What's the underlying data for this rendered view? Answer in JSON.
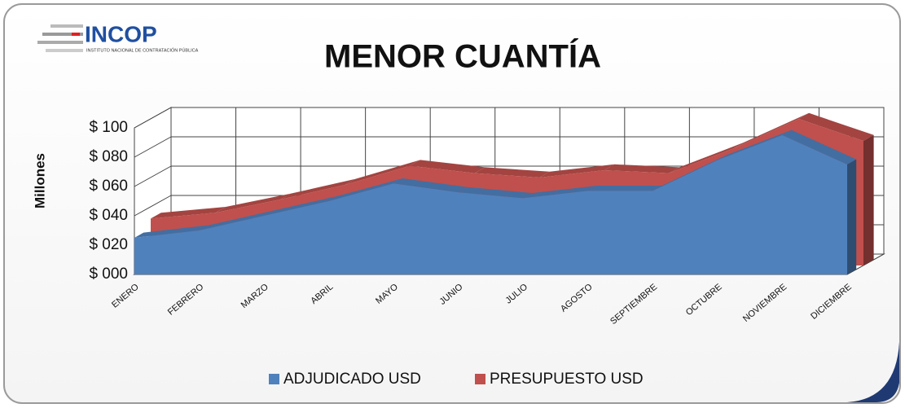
{
  "logo": {
    "name": "INCOP",
    "subtitle": "INSTITUTO NACIONAL DE CONTRATACIÓN PÚBLICA"
  },
  "chart_data": {
    "type": "area3d",
    "title": "MENOR CUANTÍA",
    "y_label": "Millones",
    "categories": [
      "ENERO",
      "FEBRERO",
      "MARZO",
      "ABRIL",
      "MAYO",
      "JUNIO",
      "JULIO",
      "AGOSTO",
      "SEPTIEMBRE",
      "OCTUBRE",
      "NOVIEMBRE",
      "DICIEMBRE"
    ],
    "series": [
      {
        "name": "ADJUDICADO USD",
        "color": "#4f81bd",
        "values": [
          25,
          30,
          40,
          50,
          62,
          56,
          52,
          57,
          57,
          78,
          95,
          75
        ]
      },
      {
        "name": "PRESUPUESTO USD",
        "color": "#c0504d",
        "values": [
          32,
          36,
          45,
          55,
          68,
          63,
          60,
          65,
          63,
          80,
          100,
          85
        ]
      }
    ],
    "ylim": [
      0,
      100
    ],
    "yticks": [
      {
        "value": 0,
        "label": "$ 000"
      },
      {
        "value": 20,
        "label": "$ 020"
      },
      {
        "value": 40,
        "label": "$ 040"
      },
      {
        "value": 60,
        "label": "$ 060"
      },
      {
        "value": 80,
        "label": "$ 080"
      },
      {
        "value": 100,
        "label": "$ 100"
      }
    ],
    "grid": true,
    "legend": "bottom"
  }
}
